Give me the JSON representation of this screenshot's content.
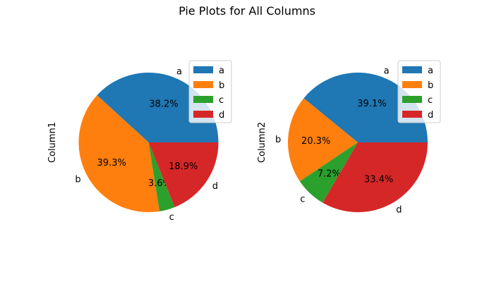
{
  "chart_data": {
    "type": "pie",
    "title": "Pie Plots for All Columns",
    "labels": [
      "a",
      "b",
      "c",
      "d"
    ],
    "colors": [
      "#1f77b4",
      "#ff7f0e",
      "#2ca02c",
      "#d62728"
    ],
    "charts": [
      {
        "ylabel": "Column1",
        "values": [
          38.2,
          39.3,
          3.6,
          18.9
        ],
        "pct_labels": [
          "38.2%",
          "39.3%",
          "3.6%",
          "18.9%"
        ],
        "legend_position": "upper right"
      },
      {
        "ylabel": "Column2",
        "values": [
          39.1,
          20.3,
          7.2,
          33.4
        ],
        "pct_labels": [
          "39.1%",
          "20.3%",
          "7.2%",
          "33.4%"
        ],
        "legend_position": "upper right"
      }
    ]
  }
}
